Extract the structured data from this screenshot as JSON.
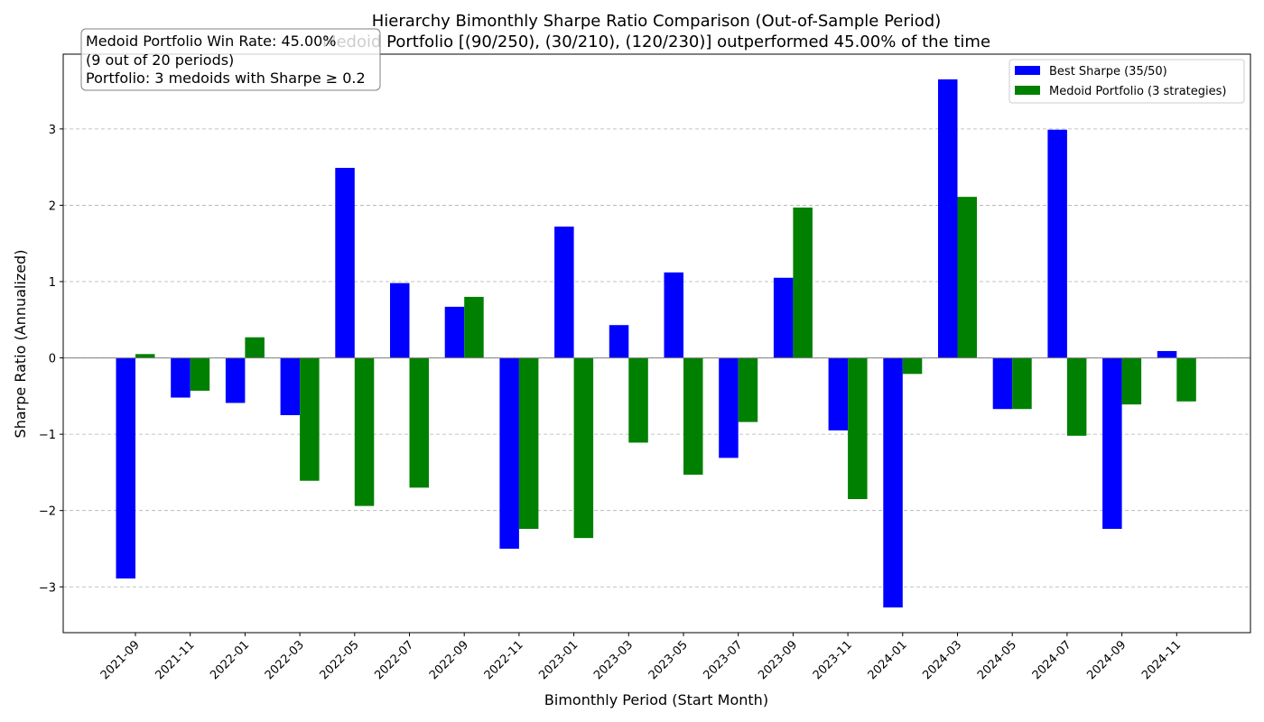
{
  "chart_data": {
    "type": "bar",
    "title": "Hierarchy Bimonthly Sharpe Ratio Comparison (Out-of-Sample Period)",
    "subtitle": "Medoid Portfolio [(90/250), (30/210), (120/230)] outperformed 45.00% of the time",
    "xlabel": "Bimonthly Period (Start Month)",
    "ylabel": "Sharpe Ratio (Annualized)",
    "ylim": [
      -3.6,
      3.98
    ],
    "yticks": [
      -3,
      -2,
      -1,
      0,
      1,
      2,
      3
    ],
    "ytick_labels": [
      "−3",
      "−2",
      "−1",
      "0",
      "1",
      "2",
      "3"
    ],
    "grid": "horizontal dashed",
    "legend_position": "top-right",
    "categories": [
      "2021-09",
      "2021-11",
      "2022-01",
      "2022-03",
      "2022-05",
      "2022-07",
      "2022-09",
      "2022-11",
      "2023-01",
      "2023-03",
      "2023-05",
      "2023-07",
      "2023-09",
      "2023-11",
      "2024-01",
      "2024-03",
      "2024-05",
      "2024-07",
      "2024-09",
      "2024-11"
    ],
    "series": [
      {
        "name": "Best Sharpe (35/50)",
        "color": "#0000ff",
        "values": [
          -2.89,
          -0.52,
          -0.59,
          -0.75,
          2.49,
          0.98,
          0.67,
          -2.5,
          1.72,
          0.43,
          1.12,
          -1.31,
          1.05,
          -0.95,
          -3.27,
          3.65,
          -0.67,
          2.99,
          -2.24,
          0.09
        ]
      },
      {
        "name": "Medoid Portfolio (3 strategies)",
        "color": "#008000",
        "values": [
          0.05,
          -0.43,
          0.27,
          -1.61,
          -1.94,
          -1.7,
          0.8,
          -2.24,
          -2.36,
          -1.11,
          -1.53,
          -0.84,
          1.97,
          -1.85,
          -0.21,
          2.11,
          -0.67,
          -1.02,
          -0.61,
          -0.57
        ]
      }
    ],
    "annotation": {
      "lines": [
        "Medoid Portfolio Win Rate: 45.00%",
        "(9 out of 20 periods)",
        "Portfolio: 3 medoids with Sharpe ≥ 0.2"
      ]
    }
  }
}
